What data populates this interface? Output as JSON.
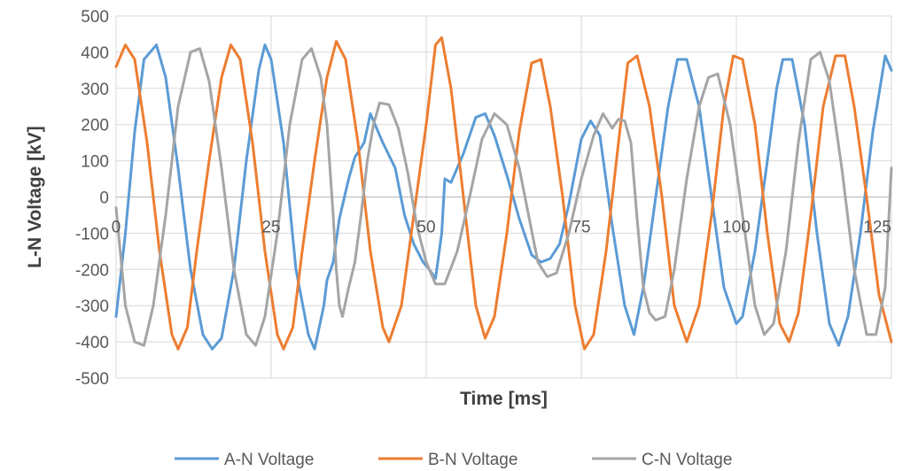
{
  "chart_data": {
    "type": "line",
    "title": "",
    "xlabel": "Time [ms]",
    "ylabel": "L-N Voltage [kV]",
    "xlim": [
      0,
      125
    ],
    "ylim": [
      -500,
      500
    ],
    "grid": true,
    "legend_position": "bottom",
    "x_ticks": [
      0,
      25,
      50,
      75,
      100,
      125
    ],
    "y_ticks": [
      -500,
      -400,
      -300,
      -200,
      -100,
      0,
      100,
      200,
      300,
      400,
      500
    ],
    "x_tick_labels": [
      "0",
      "25",
      "50",
      "75",
      "100",
      "125"
    ],
    "y_tick_labels": [
      "-500",
      "-400",
      "-300",
      "-200",
      "-100",
      "0",
      "100",
      "200",
      "300",
      "400",
      "500"
    ],
    "series": [
      {
        "name": "A-N Voltage",
        "color": "#5B9BD5",
        "points": [
          [
            0,
            -330
          ],
          [
            1.5,
            -100
          ],
          [
            3,
            180
          ],
          [
            4.5,
            380
          ],
          [
            6.5,
            420
          ],
          [
            8,
            330
          ],
          [
            10,
            80
          ],
          [
            12,
            -200
          ],
          [
            14,
            -380
          ],
          [
            15.5,
            -420
          ],
          [
            17,
            -390
          ],
          [
            19,
            -200
          ],
          [
            21,
            100
          ],
          [
            23,
            350
          ],
          [
            24,
            420
          ],
          [
            25,
            380
          ],
          [
            27,
            150
          ],
          [
            29,
            -200
          ],
          [
            31,
            -380
          ],
          [
            32,
            -420
          ],
          [
            33.5,
            -300
          ],
          [
            34,
            -230
          ],
          [
            35,
            -180
          ],
          [
            36,
            -60
          ],
          [
            37.5,
            50
          ],
          [
            38.5,
            110
          ],
          [
            40,
            150
          ],
          [
            41,
            230
          ],
          [
            42,
            190
          ],
          [
            43,
            150
          ],
          [
            45,
            80
          ],
          [
            46.5,
            -50
          ],
          [
            48,
            -130
          ],
          [
            49.5,
            -180
          ],
          [
            50.5,
            -200
          ],
          [
            51.5,
            -225
          ],
          [
            52.5,
            -100
          ],
          [
            53,
            50
          ],
          [
            54,
            40
          ],
          [
            56,
            120
          ],
          [
            58,
            220
          ],
          [
            59.5,
            230
          ],
          [
            61,
            170
          ],
          [
            63,
            60
          ],
          [
            65,
            -60
          ],
          [
            67,
            -160
          ],
          [
            68.5,
            -180
          ],
          [
            70,
            -170
          ],
          [
            71.5,
            -130
          ],
          [
            73,
            -20
          ],
          [
            75,
            160
          ],
          [
            76.5,
            210
          ],
          [
            78,
            170
          ],
          [
            80,
            -80
          ],
          [
            82,
            -300
          ],
          [
            83.5,
            -380
          ],
          [
            85,
            -250
          ],
          [
            87,
            0
          ],
          [
            89,
            250
          ],
          [
            90.5,
            380
          ],
          [
            92,
            380
          ],
          [
            94,
            250
          ],
          [
            96,
            0
          ],
          [
            98,
            -250
          ],
          [
            100,
            -350
          ],
          [
            101,
            -330
          ],
          [
            103,
            -150
          ],
          [
            105,
            100
          ],
          [
            106.5,
            300
          ],
          [
            107.5,
            380
          ],
          [
            109,
            380
          ],
          [
            111,
            200
          ],
          [
            113,
            -100
          ],
          [
            115,
            -350
          ],
          [
            116.5,
            -410
          ],
          [
            118,
            -330
          ],
          [
            120,
            -100
          ],
          [
            122,
            180
          ],
          [
            124,
            390
          ],
          [
            125,
            350
          ]
        ]
      },
      {
        "name": "B-N Voltage",
        "color": "#ED7D31",
        "points": [
          [
            0,
            360
          ],
          [
            1.5,
            420
          ],
          [
            3,
            380
          ],
          [
            5,
            150
          ],
          [
            7,
            -150
          ],
          [
            9,
            -380
          ],
          [
            10,
            -420
          ],
          [
            11.5,
            -360
          ],
          [
            13,
            -150
          ],
          [
            15,
            100
          ],
          [
            17,
            330
          ],
          [
            18.5,
            420
          ],
          [
            20,
            380
          ],
          [
            22,
            150
          ],
          [
            24,
            -150
          ],
          [
            26,
            -380
          ],
          [
            27,
            -420
          ],
          [
            28.5,
            -360
          ],
          [
            30,
            -150
          ],
          [
            32,
            100
          ],
          [
            34,
            330
          ],
          [
            35.5,
            430
          ],
          [
            37,
            380
          ],
          [
            39,
            150
          ],
          [
            41,
            -150
          ],
          [
            43,
            -360
          ],
          [
            44,
            -400
          ],
          [
            46,
            -300
          ],
          [
            48,
            -50
          ],
          [
            50,
            200
          ],
          [
            51.5,
            420
          ],
          [
            52.5,
            440
          ],
          [
            54,
            300
          ],
          [
            56,
            0
          ],
          [
            58,
            -300
          ],
          [
            59.5,
            -390
          ],
          [
            61,
            -330
          ],
          [
            63,
            -100
          ],
          [
            65,
            180
          ],
          [
            67,
            370
          ],
          [
            68.5,
            380
          ],
          [
            70,
            250
          ],
          [
            72,
            0
          ],
          [
            74,
            -300
          ],
          [
            75.5,
            -420
          ],
          [
            77,
            -380
          ],
          [
            79,
            -150
          ],
          [
            81,
            150
          ],
          [
            82.5,
            370
          ],
          [
            84,
            390
          ],
          [
            86,
            250
          ],
          [
            88,
            0
          ],
          [
            90,
            -300
          ],
          [
            92,
            -400
          ],
          [
            94,
            -300
          ],
          [
            96,
            -50
          ],
          [
            98,
            250
          ],
          [
            99.5,
            390
          ],
          [
            101,
            380
          ],
          [
            103,
            200
          ],
          [
            105,
            -100
          ],
          [
            107,
            -350
          ],
          [
            108.5,
            -400
          ],
          [
            110,
            -320
          ],
          [
            112,
            -50
          ],
          [
            114,
            250
          ],
          [
            116,
            390
          ],
          [
            117.5,
            390
          ],
          [
            119,
            250
          ],
          [
            121,
            0
          ],
          [
            123,
            -270
          ],
          [
            125,
            -400
          ]
        ]
      },
      {
        "name": "C-N Voltage",
        "color": "#A5A5A5",
        "points": [
          [
            0,
            -30
          ],
          [
            1.5,
            -300
          ],
          [
            3,
            -400
          ],
          [
            4.5,
            -410
          ],
          [
            6,
            -300
          ],
          [
            8,
            -50
          ],
          [
            10,
            250
          ],
          [
            12,
            400
          ],
          [
            13.5,
            410
          ],
          [
            15,
            320
          ],
          [
            17,
            80
          ],
          [
            19,
            -200
          ],
          [
            21,
            -380
          ],
          [
            22.5,
            -410
          ],
          [
            24,
            -330
          ],
          [
            26,
            -100
          ],
          [
            28,
            200
          ],
          [
            30,
            380
          ],
          [
            31.5,
            410
          ],
          [
            33,
            330
          ],
          [
            34,
            200
          ],
          [
            35,
            -50
          ],
          [
            35.5,
            -200
          ],
          [
            36,
            -300
          ],
          [
            36.5,
            -330
          ],
          [
            37.5,
            -250
          ],
          [
            38.5,
            -180
          ],
          [
            39.5,
            -50
          ],
          [
            40.5,
            100
          ],
          [
            41.5,
            200
          ],
          [
            42.5,
            260
          ],
          [
            44,
            255
          ],
          [
            45.5,
            190
          ],
          [
            47,
            70
          ],
          [
            48.5,
            -80
          ],
          [
            50,
            -180
          ],
          [
            51.5,
            -240
          ],
          [
            53,
            -240
          ],
          [
            55,
            -150
          ],
          [
            57,
            0
          ],
          [
            59,
            160
          ],
          [
            61,
            230
          ],
          [
            63,
            200
          ],
          [
            65,
            80
          ],
          [
            66.5,
            -50
          ],
          [
            68,
            -180
          ],
          [
            69.5,
            -220
          ],
          [
            71,
            -210
          ],
          [
            73,
            -100
          ],
          [
            75,
            50
          ],
          [
            77,
            170
          ],
          [
            78.5,
            230
          ],
          [
            80,
            190
          ],
          [
            81,
            215
          ],
          [
            82,
            210
          ],
          [
            83,
            150
          ],
          [
            84,
            -60
          ],
          [
            85,
            -250
          ],
          [
            86,
            -320
          ],
          [
            87,
            -340
          ],
          [
            88.5,
            -330
          ],
          [
            90,
            -200
          ],
          [
            92,
            50
          ],
          [
            94,
            250
          ],
          [
            95.5,
            330
          ],
          [
            97,
            340
          ],
          [
            99,
            200
          ],
          [
            101,
            -50
          ],
          [
            103,
            -300
          ],
          [
            104.5,
            -380
          ],
          [
            106,
            -350
          ],
          [
            108,
            -150
          ],
          [
            110,
            150
          ],
          [
            112,
            380
          ],
          [
            113.5,
            400
          ],
          [
            115,
            320
          ],
          [
            117,
            80
          ],
          [
            119,
            -200
          ],
          [
            121,
            -380
          ],
          [
            122.5,
            -380
          ],
          [
            124,
            -250
          ],
          [
            125,
            80
          ]
        ]
      }
    ]
  }
}
